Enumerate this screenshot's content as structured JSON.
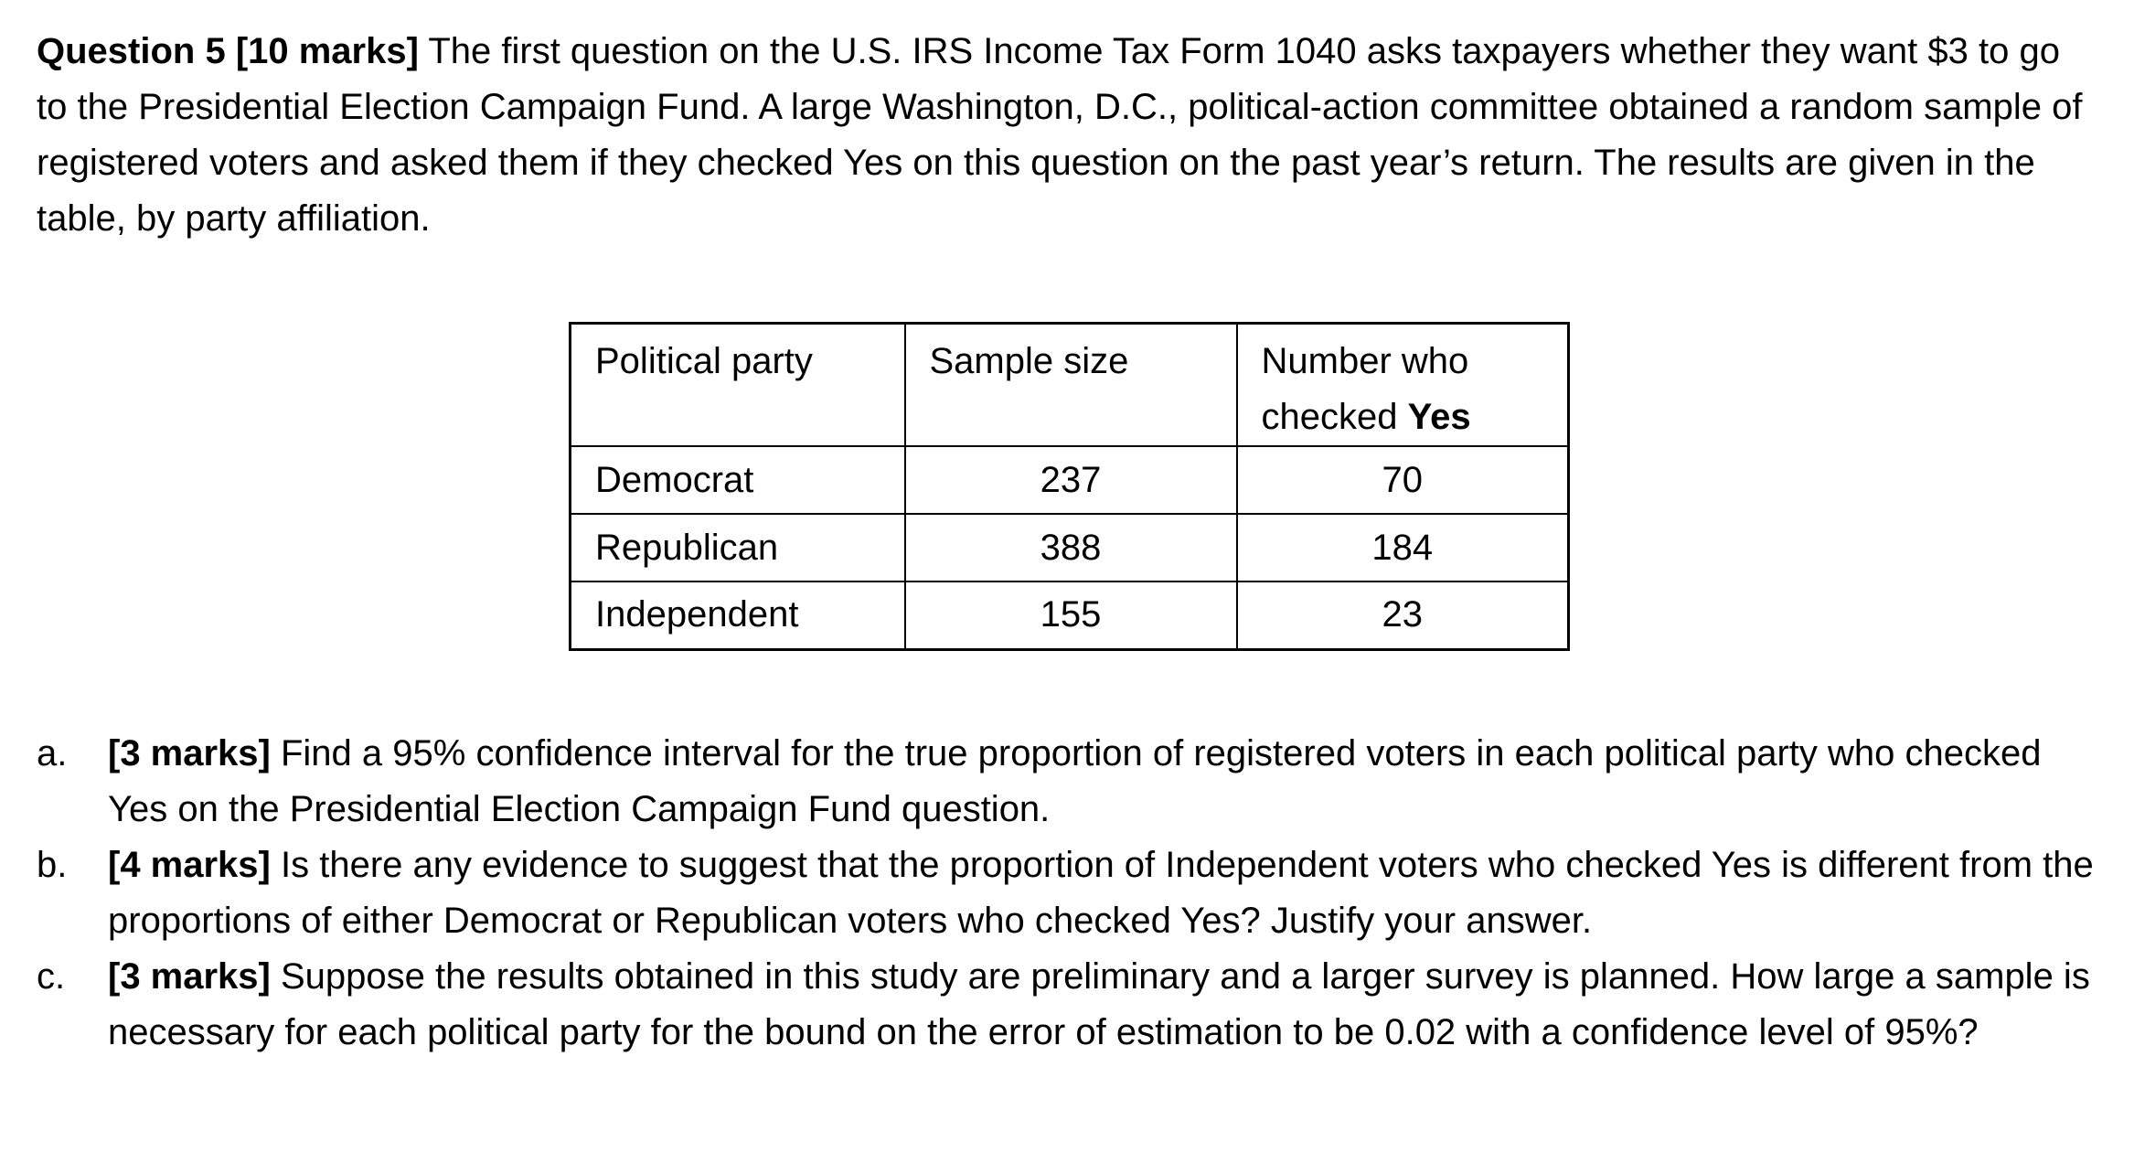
{
  "colors": {
    "background": "#ffffff",
    "text": "#000000",
    "table_border": "#000000"
  },
  "intro": {
    "bold_lead": "Question 5 [10 marks]",
    "text": " The first question on the U.S. IRS Income Tax Form 1040 asks taxpayers whether they want $3 to go to the Presidential Election Campaign Fund. A large Washington, D.C., political-action committee obtained a random sample of registered voters and asked them if they checked Yes on this question on the past year’s return. The results are given in the table, by party affiliation."
  },
  "table": {
    "headers": {
      "party": "Political party",
      "sample": "Sample size",
      "yes_prefix": "Number who checked ",
      "yes_bold": "Yes"
    },
    "rows": [
      {
        "party": "Democrat",
        "sample_size": "237",
        "checked_yes": "70"
      },
      {
        "party": "Republican",
        "sample_size": "388",
        "checked_yes": "184"
      },
      {
        "party": "Independent",
        "sample_size": "155",
        "checked_yes": "23"
      }
    ]
  },
  "parts": [
    {
      "label": "a.",
      "marks": "[3 marks]",
      "text": " Find a 95% confidence interval for the true proportion of registered voters in each political party who checked Yes on the Presidential Election Campaign Fund question."
    },
    {
      "label": "b.",
      "marks": "[4 marks]",
      "text": " Is there any evidence to suggest that the proportion of Independent voters who checked Yes is different from the proportions of either Democrat or Republican voters who checked Yes? Justify your answer."
    },
    {
      "label": "c.",
      "marks": "[3 marks]",
      "text": " Suppose the results obtained in this study are preliminary and a larger survey is planned. How large a sample is necessary for each political party for the bound on the error of estimation to be 0.02 with a confidence level of 95%?"
    }
  ]
}
